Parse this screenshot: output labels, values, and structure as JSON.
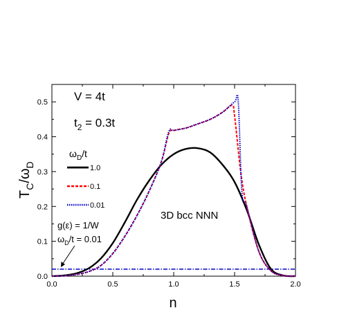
{
  "chart_data": {
    "type": "line",
    "xlabel": "n",
    "ylabel_main": "T",
    "ylabel_sub1": "C",
    "ylabel_mid": "/ω",
    "ylabel_sub2": "D",
    "xlim": [
      0.0,
      2.0
    ],
    "ylim": [
      0.0,
      0.55
    ],
    "xticks": [
      "0.0",
      "0.5",
      "1.0",
      "1.5",
      "2.0"
    ],
    "yticks": [
      "0.0",
      "0.1",
      "0.2",
      "0.3",
      "0.4",
      "0.5"
    ],
    "grid": false,
    "annotations": {
      "v_text": "V = 4t",
      "t2_main": "t",
      "t2_sub": "2",
      "t2_rest": " = 0.3t",
      "lattice": "3D bcc  NNN",
      "flat_line1": "g(ε) = 1/W",
      "flat_line2_main": "ω",
      "flat_line2_sub": "D",
      "flat_line2_rest": "/t = 0.01"
    },
    "legend": {
      "title_main": "ω",
      "title_sub": "D",
      "title_rest": "/t",
      "placement": "left"
    },
    "series": [
      {
        "name": "1.0",
        "color": "#000000",
        "style": "solid",
        "x": [
          0.0,
          0.1,
          0.2,
          0.3,
          0.4,
          0.5,
          0.6,
          0.7,
          0.8,
          0.9,
          1.0,
          1.1,
          1.2,
          1.3,
          1.4,
          1.5,
          1.6,
          1.7,
          1.8,
          1.9,
          2.0
        ],
        "y": [
          0.0,
          0.002,
          0.008,
          0.022,
          0.05,
          0.095,
          0.155,
          0.22,
          0.275,
          0.32,
          0.35,
          0.365,
          0.367,
          0.355,
          0.32,
          0.27,
          0.19,
          0.09,
          0.02,
          0.002,
          0.0
        ]
      },
      {
        "name": "0.1",
        "color": "#ff0000",
        "style": "dashed",
        "x": [
          0.0,
          0.1,
          0.2,
          0.3,
          0.4,
          0.5,
          0.6,
          0.7,
          0.8,
          0.9,
          0.96,
          1.0,
          1.1,
          1.2,
          1.3,
          1.4,
          1.48,
          1.5,
          1.55,
          1.6,
          1.7,
          1.8,
          1.9,
          2.0
        ],
        "y": [
          0.0,
          0.001,
          0.005,
          0.013,
          0.03,
          0.065,
          0.115,
          0.175,
          0.245,
          0.33,
          0.41,
          0.418,
          0.425,
          0.437,
          0.45,
          0.47,
          0.49,
          0.46,
          0.3,
          0.2,
          0.07,
          0.015,
          0.002,
          0.0
        ]
      },
      {
        "name": "0.01",
        "color": "#0000cc",
        "style": "dotted",
        "x": [
          0.0,
          0.1,
          0.2,
          0.3,
          0.4,
          0.5,
          0.6,
          0.7,
          0.8,
          0.9,
          0.96,
          1.0,
          1.1,
          1.2,
          1.3,
          1.4,
          1.5,
          1.53,
          1.56,
          1.6,
          1.7,
          1.8,
          1.9,
          2.0
        ],
        "y": [
          0.0,
          0.001,
          0.005,
          0.013,
          0.03,
          0.065,
          0.115,
          0.175,
          0.245,
          0.33,
          0.415,
          0.418,
          0.425,
          0.437,
          0.45,
          0.47,
          0.5,
          0.5,
          0.24,
          0.2,
          0.07,
          0.015,
          0.002,
          0.0
        ]
      }
    ],
    "flat_series": {
      "color": "#0000cc",
      "style": "dash-dot",
      "x": [
        0.0,
        2.0
      ],
      "y": [
        0.02,
        0.02
      ]
    }
  }
}
